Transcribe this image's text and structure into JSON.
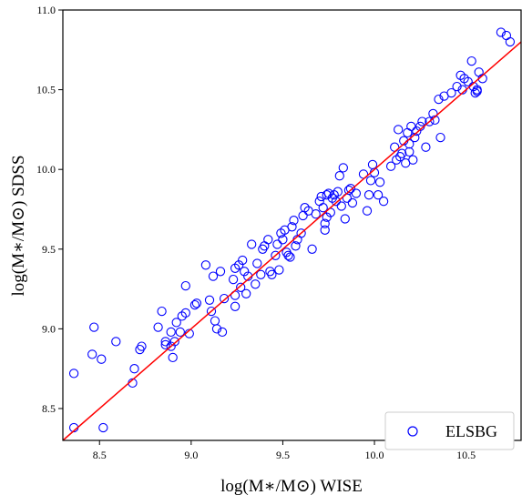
{
  "chart_data": {
    "type": "scatter",
    "title": "",
    "xlabel": "log(M∗/M⊙) WISE",
    "ylabel": "log(M∗/M⊙) SDSS",
    "xlim": [
      8.3,
      10.8
    ],
    "ylim": [
      8.3,
      11.0
    ],
    "xticks": [
      8.5,
      9.0,
      9.5,
      10.0,
      10.5
    ],
    "yticks": [
      8.5,
      9.0,
      9.5,
      10.0,
      10.5,
      11.0
    ],
    "xtick_labels": [
      "8.5",
      "9.0",
      "9.5",
      "10.0",
      "10.5"
    ],
    "ytick_labels": [
      "8.5",
      "9.0",
      "9.5",
      "10.0",
      "10.5",
      "11.0"
    ],
    "grid": false,
    "legend_position": "bottom-right",
    "colors": {
      "points": "#0000ff",
      "fit_line": "#ff0000",
      "axes": "#000000"
    },
    "series": [
      {
        "name": "ELSBG",
        "marker": "open-circle",
        "points": [
          [
            8.36,
            8.72
          ],
          [
            8.36,
            8.38
          ],
          [
            8.46,
            8.84
          ],
          [
            8.47,
            9.01
          ],
          [
            8.51,
            8.81
          ],
          [
            8.52,
            8.38
          ],
          [
            8.59,
            8.92
          ],
          [
            8.68,
            8.66
          ],
          [
            8.69,
            8.75
          ],
          [
            8.72,
            8.87
          ],
          [
            8.73,
            8.89
          ],
          [
            8.82,
            9.01
          ],
          [
            8.84,
            9.11
          ],
          [
            8.86,
            8.92
          ],
          [
            8.86,
            8.9
          ],
          [
            8.89,
            8.89
          ],
          [
            8.89,
            8.98
          ],
          [
            8.9,
            8.82
          ],
          [
            8.91,
            8.92
          ],
          [
            8.92,
            9.04
          ],
          [
            8.94,
            8.98
          ],
          [
            8.95,
            9.08
          ],
          [
            8.97,
            9.1
          ],
          [
            8.97,
            9.27
          ],
          [
            8.99,
            8.97
          ],
          [
            9.02,
            9.15
          ],
          [
            9.03,
            9.16
          ],
          [
            9.08,
            9.4
          ],
          [
            9.1,
            9.18
          ],
          [
            9.11,
            9.11
          ],
          [
            9.12,
            9.33
          ],
          [
            9.13,
            9.05
          ],
          [
            9.14,
            9.0
          ],
          [
            9.16,
            9.36
          ],
          [
            9.17,
            8.98
          ],
          [
            9.18,
            9.19
          ],
          [
            9.23,
            9.31
          ],
          [
            9.24,
            9.14
          ],
          [
            9.24,
            9.21
          ],
          [
            9.24,
            9.38
          ],
          [
            9.26,
            9.4
          ],
          [
            9.27,
            9.26
          ],
          [
            9.28,
            9.43
          ],
          [
            9.29,
            9.36
          ],
          [
            9.3,
            9.22
          ],
          [
            9.31,
            9.33
          ],
          [
            9.33,
            9.53
          ],
          [
            9.35,
            9.28
          ],
          [
            9.36,
            9.41
          ],
          [
            9.38,
            9.34
          ],
          [
            9.39,
            9.5
          ],
          [
            9.4,
            9.52
          ],
          [
            9.42,
            9.56
          ],
          [
            9.43,
            9.36
          ],
          [
            9.44,
            9.34
          ],
          [
            9.46,
            9.46
          ],
          [
            9.47,
            9.53
          ],
          [
            9.48,
            9.37
          ],
          [
            9.49,
            9.6
          ],
          [
            9.5,
            9.56
          ],
          [
            9.51,
            9.62
          ],
          [
            9.52,
            9.48
          ],
          [
            9.53,
            9.46
          ],
          [
            9.54,
            9.45
          ],
          [
            9.55,
            9.64
          ],
          [
            9.56,
            9.68
          ],
          [
            9.57,
            9.52
          ],
          [
            9.58,
            9.56
          ],
          [
            9.6,
            9.6
          ],
          [
            9.61,
            9.71
          ],
          [
            9.62,
            9.76
          ],
          [
            9.64,
            9.74
          ],
          [
            9.66,
            9.5
          ],
          [
            9.68,
            9.72
          ],
          [
            9.7,
            9.8
          ],
          [
            9.71,
            9.83
          ],
          [
            9.72,
            9.76
          ],
          [
            9.73,
            9.62
          ],
          [
            9.73,
            9.66
          ],
          [
            9.74,
            9.84
          ],
          [
            9.74,
            9.7
          ],
          [
            9.75,
            9.85
          ],
          [
            9.76,
            9.73
          ],
          [
            9.77,
            9.82
          ],
          [
            9.78,
            9.84
          ],
          [
            9.79,
            9.8
          ],
          [
            9.8,
            9.86
          ],
          [
            9.81,
            9.96
          ],
          [
            9.82,
            9.77
          ],
          [
            9.83,
            10.01
          ],
          [
            9.84,
            9.69
          ],
          [
            9.85,
            9.82
          ],
          [
            9.86,
            9.87
          ],
          [
            9.87,
            9.88
          ],
          [
            9.88,
            9.79
          ],
          [
            9.9,
            9.85
          ],
          [
            9.94,
            9.97
          ],
          [
            9.96,
            9.74
          ],
          [
            9.97,
            9.84
          ],
          [
            9.98,
            9.93
          ],
          [
            9.99,
            10.03
          ],
          [
            10.0,
            9.98
          ],
          [
            10.02,
            9.84
          ],
          [
            10.03,
            9.92
          ],
          [
            10.05,
            9.8
          ],
          [
            10.09,
            10.02
          ],
          [
            10.11,
            10.14
          ],
          [
            10.12,
            10.06
          ],
          [
            10.13,
            10.25
          ],
          [
            10.15,
            10.1
          ],
          [
            10.16,
            10.18
          ],
          [
            10.17,
            10.04
          ],
          [
            10.18,
            10.23
          ],
          [
            10.19,
            10.16
          ],
          [
            10.2,
            10.27
          ],
          [
            10.21,
            10.06
          ],
          [
            10.22,
            10.2
          ],
          [
            10.23,
            10.24
          ],
          [
            10.25,
            10.27
          ],
          [
            10.26,
            10.3
          ],
          [
            10.28,
            10.14
          ],
          [
            10.3,
            10.3
          ],
          [
            10.32,
            10.35
          ],
          [
            10.33,
            10.31
          ],
          [
            10.35,
            10.44
          ],
          [
            10.36,
            10.2
          ],
          [
            10.38,
            10.46
          ],
          [
            10.42,
            10.48
          ],
          [
            10.45,
            10.52
          ],
          [
            10.47,
            10.59
          ],
          [
            10.48,
            10.5
          ],
          [
            10.51,
            10.55
          ],
          [
            10.53,
            10.68
          ],
          [
            10.54,
            10.52
          ],
          [
            10.55,
            10.48
          ],
          [
            10.56,
            10.5
          ],
          [
            10.57,
            10.61
          ],
          [
            10.59,
            10.57
          ],
          [
            10.69,
            10.86
          ],
          [
            10.72,
            10.84
          ],
          [
            10.74,
            10.8
          ],
          [
            10.56,
            10.49
          ],
          [
            10.49,
            10.57
          ],
          [
            10.14,
            10.08
          ],
          [
            10.19,
            10.11
          ]
        ]
      }
    ],
    "fit_line": {
      "x": [
        8.3,
        10.8
      ],
      "y": [
        8.3,
        10.8
      ]
    }
  }
}
